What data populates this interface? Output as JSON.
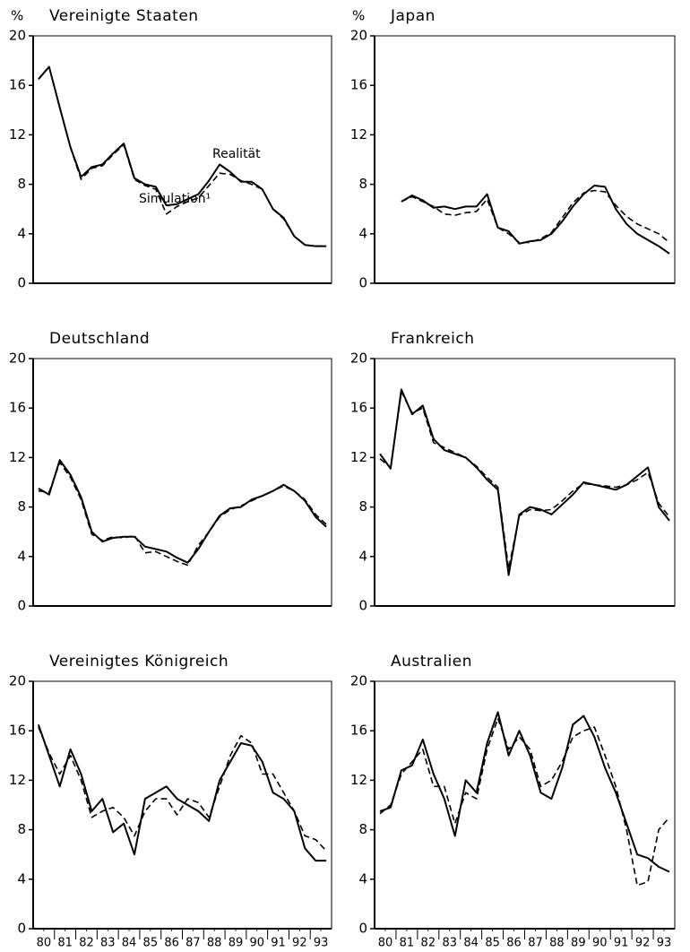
{
  "chart_data": [
    {
      "type": "line",
      "title": "Vereinigte Staaten",
      "y_label": "%",
      "x": [
        80.25,
        80.75,
        81.25,
        81.75,
        82.25,
        82.75,
        83.25,
        83.75,
        84.25,
        84.75,
        85.25,
        85.75,
        86.25,
        86.75,
        87.25,
        87.75,
        88.25,
        88.75,
        89.25,
        89.75,
        90.25,
        90.75,
        91.25,
        91.75,
        92.25,
        92.75,
        93.25,
        93.75
      ],
      "xlim": [
        80,
        94
      ],
      "ylim": [
        0,
        20
      ],
      "yticks": [
        0,
        4,
        8,
        12,
        16,
        20
      ],
      "series": [
        {
          "name": "Realität",
          "color": "#000000",
          "dash": false,
          "values": [
            16.5,
            17.5,
            14.2,
            11,
            8.6,
            9.4,
            9.6,
            10.5,
            11.3,
            8.5,
            8,
            7.8,
            6.3,
            6.4,
            6.8,
            7.2,
            8.3,
            9.6,
            9,
            8.2,
            8.2,
            7.6,
            6,
            5.3,
            3.8,
            3.1,
            3.0,
            3.0
          ]
        },
        {
          "name": "Simulation¹",
          "color": "#000000",
          "dash": true,
          "values": [
            16.5,
            17.5,
            14.2,
            11,
            8.4,
            9.3,
            9.5,
            10.4,
            11.2,
            8.4,
            7.9,
            7.6,
            5.6,
            6.2,
            6.6,
            6.9,
            7.9,
            8.9,
            8.8,
            8.3,
            8.0,
            7.6,
            6,
            5.2,
            3.8,
            3.1,
            3.0,
            3.0
          ]
        }
      ]
    },
    {
      "type": "line",
      "title": "Japan",
      "y_label": "%",
      "x": [
        80.25,
        80.75,
        81.25,
        81.75,
        82.25,
        82.75,
        83.25,
        83.75,
        84.25,
        84.75,
        85.25,
        85.75,
        86.25,
        86.75,
        87.25,
        87.75,
        88.25,
        88.75,
        89.25,
        89.75,
        90.25,
        90.75,
        91.25,
        91.75,
        92.25,
        92.75,
        93.25,
        93.75
      ],
      "xlim": [
        80,
        94
      ],
      "ylim": [
        0,
        20
      ],
      "yticks": [
        0,
        4,
        8,
        12,
        16,
        20
      ],
      "series": [
        {
          "color": "#000000",
          "dash": false,
          "values": [
            null,
            null,
            6.6,
            7.1,
            6.7,
            6.1,
            6.2,
            6.0,
            6.2,
            6.2,
            7.2,
            4.5,
            4.2,
            3.2,
            3.4,
            3.5,
            4,
            5,
            6.2,
            7.2,
            7.9,
            7.8,
            6,
            4.8,
            4.0,
            3.5,
            3.0,
            2.4
          ]
        },
        {
          "color": "#000000",
          "dash": true,
          "values": [
            null,
            null,
            6.6,
            7.0,
            6.6,
            6.2,
            5.6,
            5.5,
            5.7,
            5.8,
            6.8,
            4.5,
            4.0,
            3.3,
            3.3,
            3.6,
            4.1,
            5.3,
            6.5,
            7.3,
            7.5,
            7.4,
            6.3,
            5.4,
            4.8,
            4.4,
            4.0,
            3.3
          ]
        }
      ]
    },
    {
      "type": "line",
      "title": "Deutschland",
      "x": [
        80.25,
        80.75,
        81.25,
        81.75,
        82.25,
        82.75,
        83.25,
        83.75,
        84.25,
        84.75,
        85.25,
        85.75,
        86.25,
        86.75,
        87.25,
        87.75,
        88.25,
        88.75,
        89.25,
        89.75,
        90.25,
        90.75,
        91.25,
        91.75,
        92.25,
        92.75,
        93.25,
        93.75
      ],
      "xlim": [
        80,
        94
      ],
      "ylim": [
        0,
        20
      ],
      "yticks": [
        0,
        4,
        8,
        12,
        16,
        20
      ],
      "series": [
        {
          "color": "#000000",
          "dash": false,
          "values": [
            9.5,
            9.0,
            11.8,
            10.6,
            8.8,
            6.0,
            5.2,
            5.5,
            5.6,
            5.6,
            4.8,
            4.6,
            4.4,
            3.9,
            3.5,
            4.6,
            6.0,
            7.3,
            7.9,
            8.0,
            8.6,
            8.9,
            9.3,
            9.8,
            9.3,
            8.5,
            7.2,
            6.4
          ]
        },
        {
          "color": "#000000",
          "dash": true,
          "values": [
            9.3,
            9.2,
            11.6,
            10.4,
            8.6,
            5.8,
            5.3,
            5.6,
            5.5,
            5.7,
            4.3,
            4.4,
            4.0,
            3.6,
            3.3,
            4.9,
            6.0,
            7.2,
            7.8,
            8.1,
            8.5,
            8.9,
            9.3,
            9.7,
            9.3,
            8.6,
            7.4,
            6.6
          ]
        }
      ]
    },
    {
      "type": "line",
      "title": "Frankreich",
      "x": [
        80.25,
        80.75,
        81.25,
        81.75,
        82.25,
        82.75,
        83.25,
        83.75,
        84.25,
        84.75,
        85.25,
        85.75,
        86.25,
        86.75,
        87.25,
        87.75,
        88.25,
        88.75,
        89.25,
        89.75,
        90.25,
        90.75,
        91.25,
        91.75,
        92.25,
        92.75,
        93.25,
        93.75
      ],
      "xlim": [
        80,
        94
      ],
      "ylim": [
        0,
        20
      ],
      "yticks": [
        0,
        4,
        8,
        12,
        16,
        20
      ],
      "series": [
        {
          "color": "#000000",
          "dash": false,
          "values": [
            12.3,
            11.1,
            17.5,
            15.5,
            16.2,
            13.5,
            12.6,
            12.3,
            12.0,
            11.2,
            10.2,
            9.4,
            2.5,
            7.4,
            8.0,
            7.8,
            7.4,
            8.2,
            9.0,
            10.0,
            9.8,
            9.6,
            9.4,
            9.8,
            10.5,
            11.2,
            8.0,
            6.9
          ]
        },
        {
          "color": "#000000",
          "dash": true,
          "values": [
            11.9,
            11.2,
            17.3,
            15.6,
            16.0,
            13.2,
            12.8,
            12.4,
            12.0,
            11.3,
            10.4,
            9.6,
            3.0,
            7.3,
            7.8,
            7.7,
            7.8,
            8.5,
            9.3,
            9.9,
            9.8,
            9.7,
            9.6,
            9.8,
            10.2,
            10.8,
            8.3,
            7.2
          ]
        }
      ]
    },
    {
      "type": "line",
      "title": "Vereinigtes Königreich",
      "x": [
        80.25,
        80.75,
        81.25,
        81.75,
        82.25,
        82.75,
        83.25,
        83.75,
        84.25,
        84.75,
        85.25,
        85.75,
        86.25,
        86.75,
        87.25,
        87.75,
        88.25,
        88.75,
        89.25,
        89.75,
        90.25,
        90.75,
        91.25,
        91.75,
        92.25,
        92.75,
        93.25,
        93.75
      ],
      "xlim": [
        80,
        94
      ],
      "ylim": [
        0,
        20
      ],
      "yticks": [
        0,
        4,
        8,
        12,
        16,
        20
      ],
      "xticks": [
        {
          "value": 80.5,
          "label": "80"
        },
        {
          "value": 81.5,
          "label": "81"
        },
        {
          "value": 82.5,
          "label": "82"
        },
        {
          "value": 83.5,
          "label": "83"
        },
        {
          "value": 84.5,
          "label": "84"
        },
        {
          "value": 85.5,
          "label": "85"
        },
        {
          "value": 86.5,
          "label": "86"
        },
        {
          "value": 87.5,
          "label": "87"
        },
        {
          "value": 88.5,
          "label": "88"
        },
        {
          "value": 89.5,
          "label": "89"
        },
        {
          "value": 90.5,
          "label": "90"
        },
        {
          "value": 91.5,
          "label": "91"
        },
        {
          "value": 92.5,
          "label": "92"
        },
        {
          "value": 93.5,
          "label": "93"
        }
      ],
      "series": [
        {
          "color": "#000000",
          "dash": false,
          "values": [
            16.5,
            14.0,
            11.5,
            14.5,
            12.5,
            9.5,
            10.5,
            7.8,
            8.5,
            6.0,
            10.5,
            11.0,
            11.5,
            10.5,
            10.0,
            9.5,
            8.7,
            12.0,
            13.5,
            15.0,
            14.8,
            13.5,
            11.0,
            10.5,
            9.5,
            6.5,
            5.5,
            5.5
          ]
        },
        {
          "color": "#000000",
          "dash": true,
          "values": [
            16.3,
            14.2,
            12.5,
            14.0,
            12.0,
            9.0,
            9.5,
            9.8,
            9.0,
            7.5,
            9.5,
            10.5,
            10.5,
            9.2,
            10.5,
            10.2,
            9.0,
            11.5,
            14.0,
            15.6,
            15.0,
            12.5,
            12.5,
            11.0,
            9.5,
            7.5,
            7.2,
            6.3
          ]
        }
      ]
    },
    {
      "type": "line",
      "title": "Australien",
      "x": [
        80.25,
        80.75,
        81.25,
        81.75,
        82.25,
        82.75,
        83.25,
        83.75,
        84.25,
        84.75,
        85.25,
        85.75,
        86.25,
        86.75,
        87.25,
        87.75,
        88.25,
        88.75,
        89.25,
        89.75,
        90.25,
        90.75,
        91.25,
        91.75,
        92.25,
        92.75,
        93.25,
        93.75
      ],
      "xlim": [
        80,
        94
      ],
      "ylim": [
        0,
        20
      ],
      "yticks": [
        0,
        4,
        8,
        12,
        16,
        20
      ],
      "xticks": [
        {
          "value": 80.5,
          "label": "80"
        },
        {
          "value": 81.5,
          "label": "81"
        },
        {
          "value": 82.5,
          "label": "82"
        },
        {
          "value": 83.5,
          "label": "83"
        },
        {
          "value": 84.5,
          "label": "84"
        },
        {
          "value": 85.5,
          "label": "85"
        },
        {
          "value": 86.5,
          "label": "86"
        },
        {
          "value": 87.5,
          "label": "87"
        },
        {
          "value": 88.5,
          "label": "88"
        },
        {
          "value": 89.5,
          "label": "89"
        },
        {
          "value": 90.5,
          "label": "90"
        },
        {
          "value": 91.5,
          "label": "91"
        },
        {
          "value": 92.5,
          "label": "92"
        },
        {
          "value": 93.5,
          "label": "93"
        }
      ],
      "series": [
        {
          "color": "#000000",
          "dash": false,
          "values": [
            9.5,
            9.8,
            12.8,
            13.2,
            15.3,
            12.5,
            10.5,
            7.5,
            12.0,
            11.0,
            15.0,
            17.5,
            14.0,
            16.0,
            14.0,
            11.0,
            10.5,
            13.0,
            16.5,
            17.2,
            15.5,
            13.0,
            11.0,
            8.5,
            6.0,
            5.7,
            5.0,
            4.6
          ]
        },
        {
          "color": "#000000",
          "dash": true,
          "values": [
            9.3,
            10.0,
            12.5,
            13.5,
            14.5,
            11.5,
            11.5,
            8.5,
            11.0,
            10.5,
            14.5,
            17.0,
            14.5,
            15.5,
            14.5,
            11.5,
            12.0,
            13.5,
            15.5,
            16.0,
            16.3,
            14.0,
            11.5,
            8.0,
            3.5,
            3.8,
            8.0,
            9.0
          ]
        }
      ]
    }
  ]
}
